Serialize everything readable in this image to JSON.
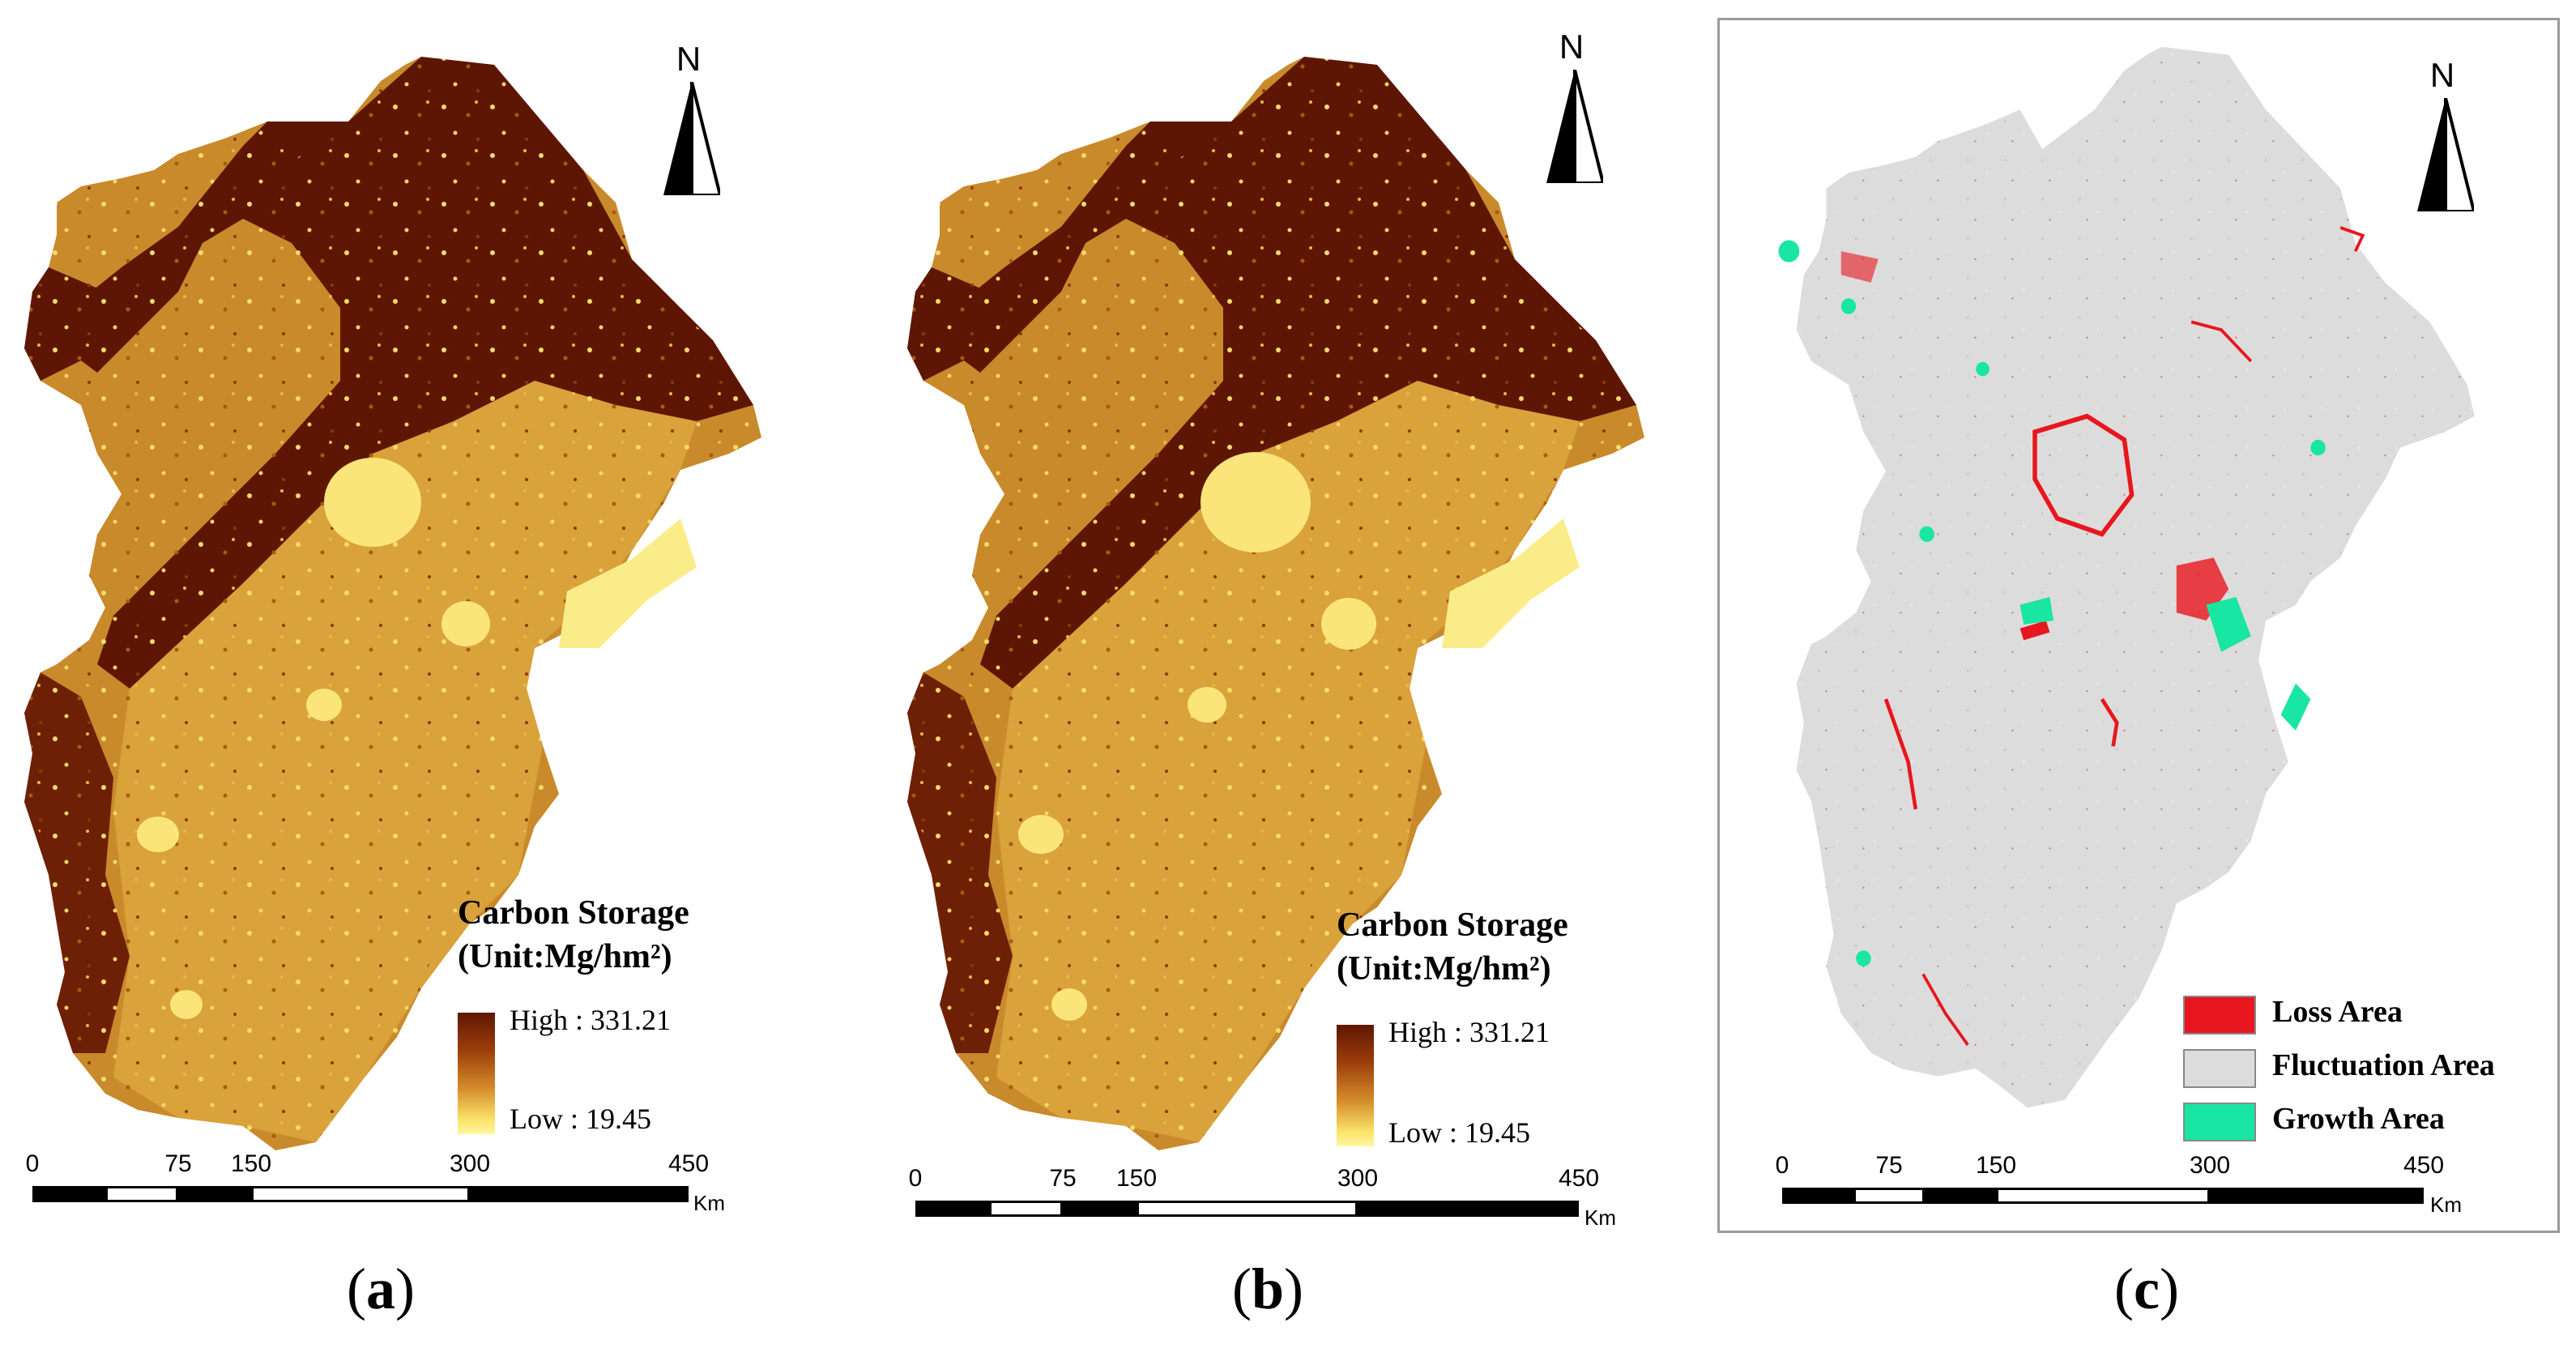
{
  "panels": [
    {
      "id": "a",
      "caption_letter": "a",
      "legend": {
        "title_line1": "Carbon Storage",
        "title_line2": "(Unit:Mg/hm²)",
        "high": "High : 331.21",
        "low": "Low : 19.45"
      }
    },
    {
      "id": "b",
      "caption_letter": "b",
      "legend": {
        "title_line1": "Carbon Storage",
        "title_line2": "(Unit:Mg/hm²)",
        "high": "High : 331.21",
        "low": "Low : 19.45"
      }
    },
    {
      "id": "c",
      "caption_letter": "c",
      "legend": {
        "items": [
          {
            "label": "Loss Area",
            "color": "#e8161e"
          },
          {
            "label": "Fluctuation Area",
            "color": "#dcdcdc"
          },
          {
            "label": "Growth Area",
            "color": "#18e6a2"
          }
        ]
      }
    }
  ],
  "north_label": "N",
  "scalebar": {
    "ticks": [
      "0",
      "75",
      "150",
      "300",
      "450"
    ],
    "unit": "Km"
  },
  "colors": {
    "high_carbon": "#5e1604",
    "mid_carbon": "#c97a22",
    "low_carbon": "#fff27a",
    "loss": "#e8161e",
    "fluctuation": "#dcdcdc",
    "growth": "#18e6a2"
  }
}
